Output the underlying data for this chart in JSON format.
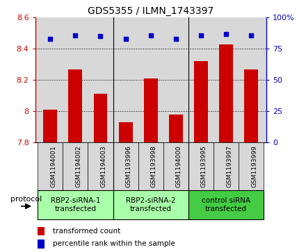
{
  "title": "GDS5355 / ILMN_1743397",
  "samples": [
    "GSM1194001",
    "GSM1194002",
    "GSM1194003",
    "GSM1193996",
    "GSM1193998",
    "GSM1194000",
    "GSM1193995",
    "GSM1193997",
    "GSM1193999"
  ],
  "bar_values": [
    8.01,
    8.27,
    8.11,
    7.93,
    8.21,
    7.98,
    8.32,
    8.43,
    8.27
  ],
  "percentile_values": [
    83,
    86,
    85,
    83,
    86,
    83,
    86,
    87,
    86
  ],
  "bar_color": "#cc0000",
  "dot_color": "#0000cc",
  "ylim_left": [
    7.8,
    8.6
  ],
  "ylim_right": [
    0,
    100
  ],
  "yticks_left": [
    7.8,
    8.0,
    8.2,
    8.4,
    8.6
  ],
  "yticks_right": [
    0,
    25,
    50,
    75,
    100
  ],
  "ytick_labels_left": [
    "7.8",
    "8",
    "8.2",
    "8.4",
    "8.6"
  ],
  "ytick_labels_right": [
    "0",
    "25",
    "50",
    "75",
    "100%"
  ],
  "grid_values": [
    8.0,
    8.2,
    8.4
  ],
  "groups": [
    {
      "label": "RBP2-siRNA-1\ntransfected",
      "start": 0,
      "end": 3,
      "color": "#aaffaa"
    },
    {
      "label": "RBP2-siRNA-2\ntransfected",
      "start": 3,
      "end": 6,
      "color": "#aaffaa"
    },
    {
      "label": "control siRNA\ntransfected",
      "start": 6,
      "end": 9,
      "color": "#44cc44"
    }
  ],
  "protocol_label": "protocol",
  "legend_bar_label": "transformed count",
  "legend_dot_label": "percentile rank within the sample",
  "plot_bg_color": "#d8d8d8",
  "sample_box_color": "#d8d8d8",
  "bar_bottom": 7.8
}
